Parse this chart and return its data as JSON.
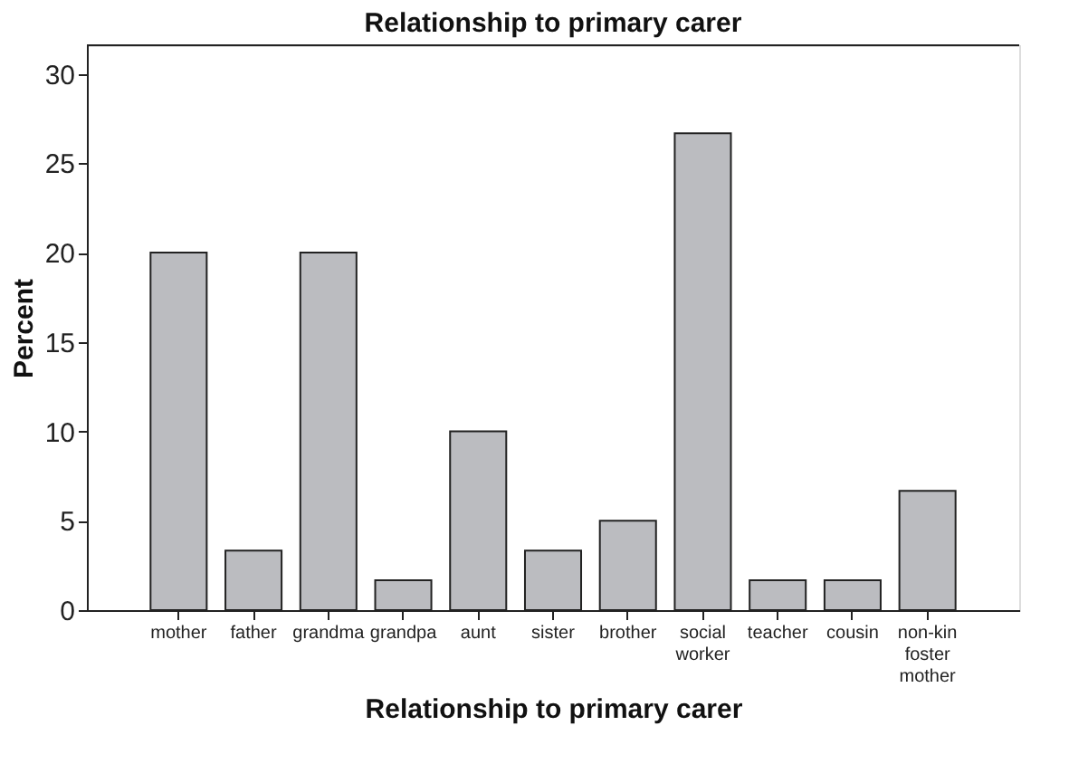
{
  "chart_data": {
    "type": "bar",
    "title": "Relationship to primary carer",
    "xlabel": "Relationship to primary carer",
    "ylabel": "Percent",
    "categories": [
      "mother",
      "father",
      "grandma",
      "grandpa",
      "aunt",
      "sister",
      "brother",
      "social worker",
      "teacher",
      "cousin",
      "non-kin foster mother"
    ],
    "values": [
      20,
      3.33,
      20,
      1.67,
      10,
      3.33,
      5,
      26.67,
      1.67,
      1.67,
      6.67
    ],
    "color": "#bbbcc0",
    "ylim": [
      0,
      31.6
    ],
    "yticks": [
      0,
      5,
      10,
      15,
      20,
      25,
      30
    ],
    "grid": false
  }
}
